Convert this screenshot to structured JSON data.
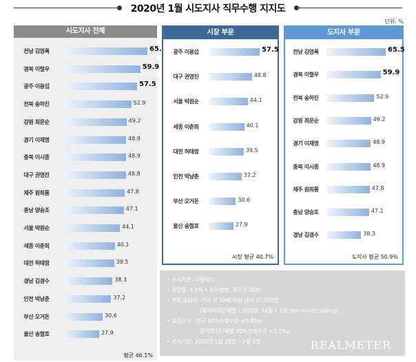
{
  "title": "2020년 1월 시도지사 직무수행 지지도",
  "unit": "단위: %",
  "chart_data": [
    {
      "type": "bar",
      "title": "시도지사 전체",
      "categories": [
        "전남 김영록",
        "경북 이철우",
        "광주 이용섭",
        "전북 송하진",
        "강원 최문순",
        "경기 이재명",
        "충북 이시종",
        "대구 권영진",
        "제주 원희룡",
        "충남 양승조",
        "서울 박원순",
        "세종 이춘희",
        "대전 허태정",
        "경남 김경수",
        "인천 박남춘",
        "부산 오거돈",
        "울산 송철호"
      ],
      "values": [
        65.5,
        59.9,
        57.5,
        52.9,
        49.2,
        48.9,
        48.9,
        48.8,
        47.8,
        47.1,
        44.1,
        40.1,
        39.5,
        38.3,
        37.2,
        30.6,
        27.9
      ],
      "avg_label": "평균 46.1%",
      "header_color": "#8a8a8a"
    },
    {
      "type": "bar",
      "title": "시장 부문",
      "categories": [
        "광주 이용섭",
        "대구 권영진",
        "서울 박원순",
        "세종 이춘희",
        "대전 허태정",
        "인천 박남춘",
        "부산 오거돈",
        "울산 송철호"
      ],
      "values": [
        57.5,
        48.8,
        44.1,
        40.1,
        39.5,
        37.2,
        30.6,
        27.9
      ],
      "avg_label": "시장 평균 40.7%",
      "header_color": "#3d6a9b"
    },
    {
      "type": "bar",
      "title": "도지사 부문",
      "categories": [
        "전남 김영록",
        "경북 이철우",
        "전북 송하진",
        "강원 최문순",
        "경기 이재명",
        "충북 이시종",
        "제주 원희룡",
        "충남 양승조",
        "경남 김경수"
      ],
      "values": [
        65.5,
        59.9,
        52.9,
        49.2,
        48.9,
        48.9,
        47.8,
        47.1,
        38.3
      ],
      "avg_label": "도지사 평균 50.9%",
      "header_color": "#5f98d6"
    }
  ],
  "notes": [
    "• 조사기관: 리얼미터",
    "• 응답률: 4.9%  • 조사방법: 유무선 RDD",
    "• 전체 응답자: 전국 만 19세 이상 남녀 17,000명",
    "(광역자치단체별 1,000명, 12월 • 1월 two-month rolling)",
    "• 표집오차 : 전국 95%신뢰수준 ±0.8%p",
    "광역자치단체별 95%신뢰수준 ±3.1%p",
    "• 조사기간: 2020년 1월 28일 ~2월 3일"
  ],
  "brand": "REALMETER"
}
